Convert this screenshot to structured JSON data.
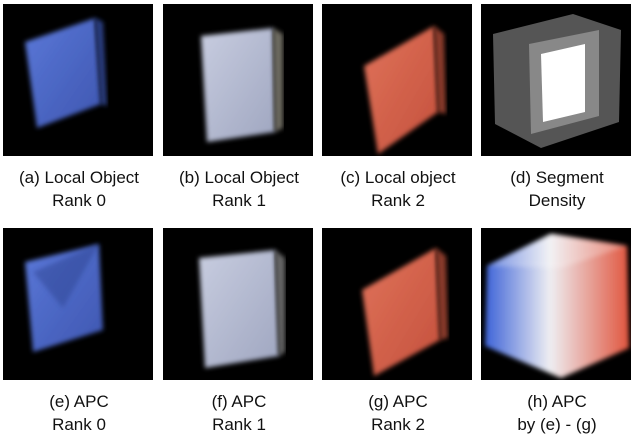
{
  "panels": [
    {
      "caption": [
        "(a) Local Object",
        "Rank 0"
      ]
    },
    {
      "caption": [
        "(b) Local Object",
        "Rank 1"
      ]
    },
    {
      "caption": [
        "(c) Local object",
        "Rank 2"
      ]
    },
    {
      "caption": [
        "(d) Segment",
        "Density"
      ]
    },
    {
      "caption": [
        "(e) APC",
        "Rank 0"
      ]
    },
    {
      "caption": [
        "(f) APC",
        "Rank 1"
      ]
    },
    {
      "caption": [
        "(g) APC",
        "Rank 2"
      ]
    },
    {
      "caption": [
        "(h) APC",
        "by (e) - (g)"
      ]
    }
  ]
}
